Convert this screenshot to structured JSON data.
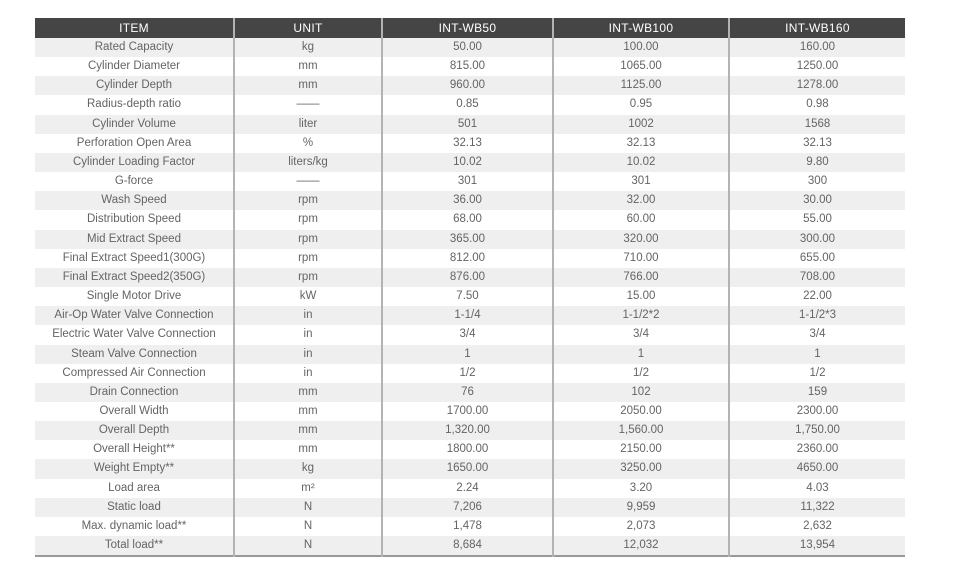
{
  "table": {
    "columns": [
      "ITEM",
      "UNIT",
      "INT-WB50",
      "INT-WB100",
      "INT-WB160"
    ],
    "rows": [
      [
        "Rated Capacity",
        "kg",
        "50.00",
        "100.00",
        "160.00"
      ],
      [
        "Cylinder Diameter",
        "mm",
        "815.00",
        "1065.00",
        "1250.00"
      ],
      [
        "Cylinder Depth",
        "mm",
        "960.00",
        "1125.00",
        "1278.00"
      ],
      [
        "Radius-depth ratio",
        "——",
        "0.85",
        "0.95",
        "0.98"
      ],
      [
        "Cylinder Volume",
        "liter",
        "501",
        "1002",
        "1568"
      ],
      [
        "Perforation Open Area",
        "%",
        "32.13",
        "32.13",
        "32.13"
      ],
      [
        "Cylinder Loading Factor",
        "liters/kg",
        "10.02",
        "10.02",
        "9.80"
      ],
      [
        "G-force",
        "——",
        "301",
        "301",
        "300"
      ],
      [
        "Wash Speed",
        "rpm",
        "36.00",
        "32.00",
        "30.00"
      ],
      [
        "Distribution Speed",
        "rpm",
        "68.00",
        "60.00",
        "55.00"
      ],
      [
        "Mid Extract Speed",
        "rpm",
        "365.00",
        "320.00",
        "300.00"
      ],
      [
        "Final Extract Speed1(300G)",
        "rpm",
        "812.00",
        "710.00",
        "655.00"
      ],
      [
        "Final Extract Speed2(350G)",
        "rpm",
        "876.00",
        "766.00",
        "708.00"
      ],
      [
        "Single Motor Drive",
        "kW",
        "7.50",
        "15.00",
        "22.00"
      ],
      [
        "Air-Op Water Valve Connection",
        "in",
        "1-1/4",
        "1-1/2*2",
        "1-1/2*3"
      ],
      [
        "Electric Water Valve Connection",
        "in",
        "3/4",
        "3/4",
        "3/4"
      ],
      [
        "Steam Valve Connection",
        "in",
        "1",
        "1",
        "1"
      ],
      [
        "Compressed Air Connection",
        "in",
        "1/2",
        "1/2",
        "1/2"
      ],
      [
        "Drain Connection",
        "mm",
        "76",
        "102",
        "159"
      ],
      [
        "Overall Width",
        "mm",
        "1700.00",
        "2050.00",
        "2300.00"
      ],
      [
        "Overall Depth",
        "mm",
        "1,320.00",
        "1,560.00",
        "1,750.00"
      ],
      [
        "Overall Height**",
        "mm",
        "1800.00",
        "2150.00",
        "2360.00"
      ],
      [
        "Weight Empty**",
        "kg",
        "1650.00",
        "3250.00",
        "4650.00"
      ],
      [
        "Load area",
        "m²",
        "2.24",
        "3.20",
        "4.03"
      ],
      [
        "Static load",
        "N",
        "7,206",
        "9,959",
        "11,322"
      ],
      [
        "Max. dynamic load**",
        "N",
        "1,478",
        "2,073",
        "2,632"
      ],
      [
        "Total load**",
        "N",
        "8,684",
        "12,032",
        "13,954"
      ]
    ]
  },
  "colors": {
    "header_bg": "#454545",
    "header_text": "#ffffff",
    "row_alt_bg": "#efefef",
    "row_bg": "#ffffff",
    "body_text": "#646464",
    "grid_line": "#b3b3b3",
    "bottom_border": "#9a9a9a",
    "page_bg": "#ffffff"
  }
}
